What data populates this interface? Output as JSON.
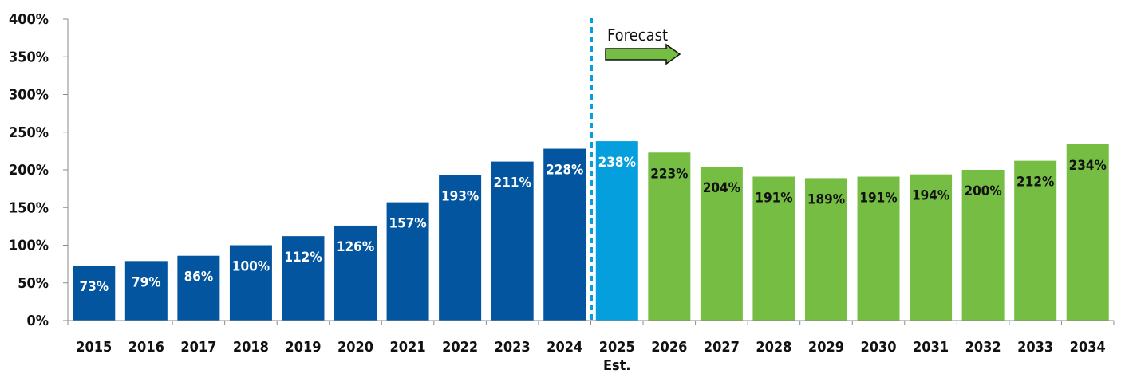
{
  "chart_data": {
    "type": "bar",
    "categories": [
      "2015",
      "2016",
      "2017",
      "2018",
      "2019",
      "2020",
      "2021",
      "2022",
      "2023",
      "2024",
      "2025",
      "2026",
      "2027",
      "2028",
      "2029",
      "2030",
      "2031",
      "2032",
      "2033",
      "2034"
    ],
    "category_sublabels": {
      "2025": "Est."
    },
    "values": [
      73,
      79,
      86,
      100,
      112,
      126,
      157,
      193,
      211,
      228,
      238,
      223,
      204,
      191,
      189,
      191,
      194,
      200,
      212,
      234
    ],
    "data_labels": [
      "73%",
      "79%",
      "86%",
      "100%",
      "112%",
      "126%",
      "157%",
      "193%",
      "211%",
      "228%",
      "238%",
      "223%",
      "204%",
      "191%",
      "189%",
      "191%",
      "194%",
      "200%",
      "212%",
      "234%"
    ],
    "bar_groups": [
      "actual",
      "actual",
      "actual",
      "actual",
      "actual",
      "actual",
      "actual",
      "actual",
      "actual",
      "actual",
      "estimate",
      "forecast",
      "forecast",
      "forecast",
      "forecast",
      "forecast",
      "forecast",
      "forecast",
      "forecast",
      "forecast"
    ],
    "colors": {
      "actual": "#02559E",
      "estimate": "#069FDD",
      "forecast": "#76BE43",
      "divider": "#069FDD"
    },
    "ylim": [
      0,
      400
    ],
    "yticks": [
      "0%",
      "50%",
      "100%",
      "150%",
      "200%",
      "250%",
      "300%",
      "350%",
      "400%"
    ],
    "ytick_values": [
      0,
      50,
      100,
      150,
      200,
      250,
      300,
      350,
      400
    ],
    "annotation": "Forecast",
    "title": "",
    "xlabel": "",
    "ylabel": "",
    "grid": false,
    "legend": "none"
  }
}
